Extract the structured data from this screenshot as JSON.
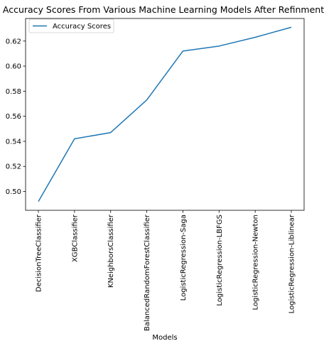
{
  "chart_data": {
    "type": "line",
    "title": "Accuracy Scores From Various Machine Learning Models After Refinment",
    "xlabel": "Models",
    "ylabel": "",
    "categories": [
      "DecisionTreeClassifier",
      "XGBClassifier",
      "KNeighborsClassifier",
      "BalancedRandomForestClassifier",
      "LogisticRegression-Saga",
      "LogisticRegression-LBFGS",
      "LogisticRegression-Newton",
      "LogisticRegression-Liblinear"
    ],
    "series": [
      {
        "name": "Accuracy Scores",
        "color": "#1f77b4",
        "values": [
          0.492,
          0.542,
          0.547,
          0.573,
          0.612,
          0.616,
          0.623,
          0.631
        ]
      }
    ],
    "yticks": [
      "0.50",
      "0.52",
      "0.54",
      "0.56",
      "0.58",
      "0.60",
      "0.62"
    ],
    "ylim": [
      0.485,
      0.638
    ],
    "grid": false,
    "legend_position": "top-left"
  }
}
